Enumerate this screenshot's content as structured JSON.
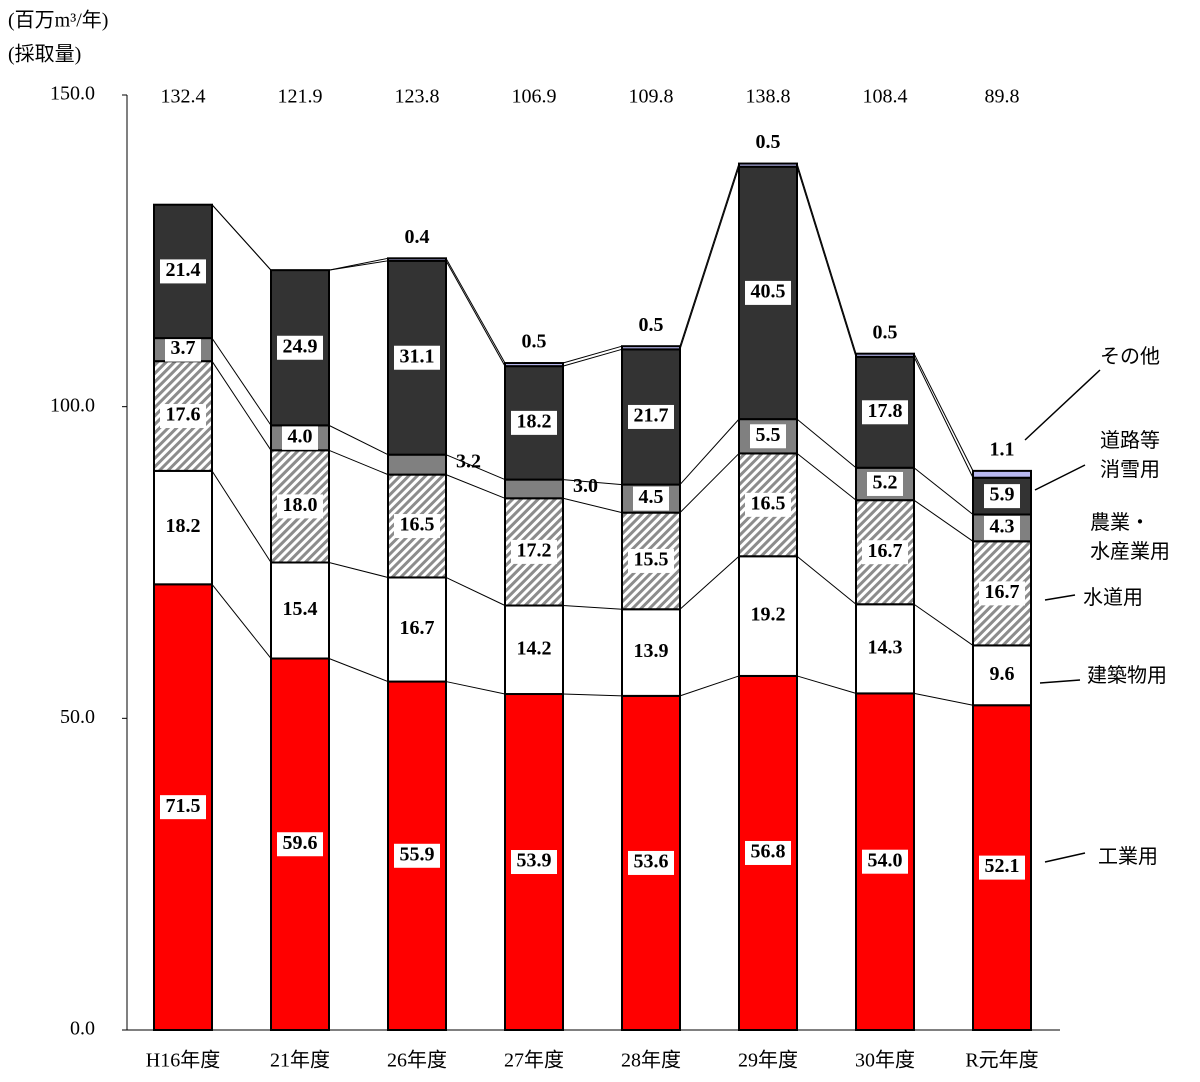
{
  "chart_data": {
    "type": "stacked_bar",
    "y_unit_label": "(百万m³/年)",
    "y_label": "(採取量)",
    "categories": [
      "H16年度",
      "21年度",
      "26年度",
      "27年度",
      "28年度",
      "29年度",
      "30年度",
      "R元年度"
    ],
    "ylim": [
      0,
      150
    ],
    "yticks": [
      {
        "value": 0,
        "label": "0.0"
      },
      {
        "value": 50,
        "label": "50.0"
      },
      {
        "value": 100,
        "label": "100.0"
      },
      {
        "value": 150,
        "label": "150.0"
      }
    ],
    "grid": false,
    "totals": [
      132.4,
      121.9,
      123.8,
      106.9,
      109.8,
      138.8,
      108.4,
      89.8
    ],
    "series": [
      {
        "name": "工業用",
        "color": "#ff0000",
        "values": [
          71.5,
          59.6,
          55.9,
          53.9,
          53.6,
          56.8,
          54.0,
          52.1
        ],
        "value_labels": [
          "71.5",
          "59.6",
          "55.9",
          "53.9",
          "53.6",
          "56.8",
          "54.0",
          "52.1"
        ]
      },
      {
        "name": "建築物用",
        "color": "#ffffff",
        "values": [
          18.2,
          15.4,
          16.7,
          14.2,
          13.9,
          19.2,
          14.3,
          9.6
        ],
        "value_labels": [
          "18.2",
          "15.4",
          "16.7",
          "14.2",
          "13.9",
          "19.2",
          "14.3",
          "9.6"
        ]
      },
      {
        "name": "水道用",
        "color": "#8c8c8c",
        "pattern": "hatch",
        "values": [
          17.6,
          18.0,
          16.5,
          17.2,
          15.5,
          16.5,
          16.7,
          16.7
        ],
        "value_labels": [
          "17.6",
          "18.0",
          "16.5",
          "17.2",
          "15.5",
          "16.5",
          "16.7",
          "16.7"
        ]
      },
      {
        "name": "農業・\n水産業用",
        "color": "#808080",
        "values": [
          3.7,
          4.0,
          3.2,
          3.0,
          4.5,
          5.5,
          5.2,
          4.3
        ],
        "value_labels": [
          "3.7",
          "4.0",
          "3.2",
          "3.0",
          "4.5",
          "5.5",
          "5.2",
          "4.3"
        ]
      },
      {
        "name": "道路等\n消雪用",
        "color": "#333333",
        "values": [
          21.4,
          24.9,
          31.1,
          18.2,
          21.7,
          40.5,
          17.8,
          5.9
        ],
        "value_labels": [
          "21.4",
          "24.9",
          "31.1",
          "18.2",
          "21.7",
          "40.5",
          "17.8",
          "5.9"
        ]
      },
      {
        "name": "その他",
        "color": "#b8b8f0",
        "values": [
          null,
          null,
          0.4,
          0.5,
          0.5,
          0.5,
          0.5,
          1.1
        ],
        "value_labels": [
          null,
          null,
          "0.4",
          "0.5",
          "0.5",
          "0.5",
          "0.5",
          "1.1"
        ]
      }
    ]
  }
}
